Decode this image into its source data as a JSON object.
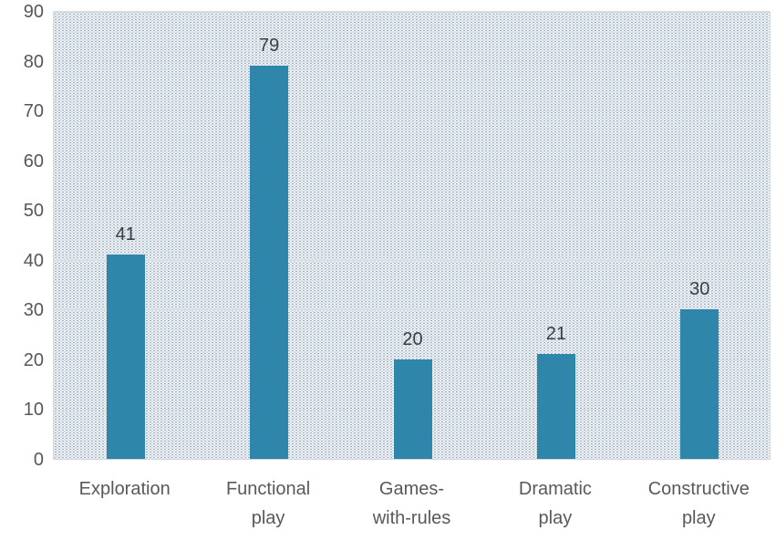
{
  "chart_data": {
    "type": "bar",
    "title": "",
    "xlabel": "",
    "ylabel": "",
    "categories": [
      "Exploration",
      "Functional play",
      "Games-with-rules",
      "Dramatic play",
      "Constructive play"
    ],
    "category_label_lines": [
      [
        "Exploration"
      ],
      [
        "Functional",
        "play"
      ],
      [
        "Games-",
        "with-rules"
      ],
      [
        "Dramatic",
        "play"
      ],
      [
        "Constructive",
        "play"
      ]
    ],
    "values": [
      41,
      79,
      20,
      21,
      30
    ],
    "data_labels": [
      "41",
      "79",
      "20",
      "21",
      "30"
    ],
    "ylim": [
      0,
      90
    ],
    "yticks": [
      0,
      10,
      20,
      30,
      40,
      50,
      60,
      70,
      80,
      90
    ],
    "grid": "horizontal",
    "legend_position": "none",
    "colors": {
      "bar": "#2f86ab",
      "value_label": "#3c3e40",
      "axis_tick_label": "#55575a",
      "category_label": "#57595b",
      "gridline": "#d9dbdc",
      "plot_border": "#d4d7d9",
      "plot_background_dots": "#9fb6c6",
      "background": "#ffffff"
    }
  }
}
